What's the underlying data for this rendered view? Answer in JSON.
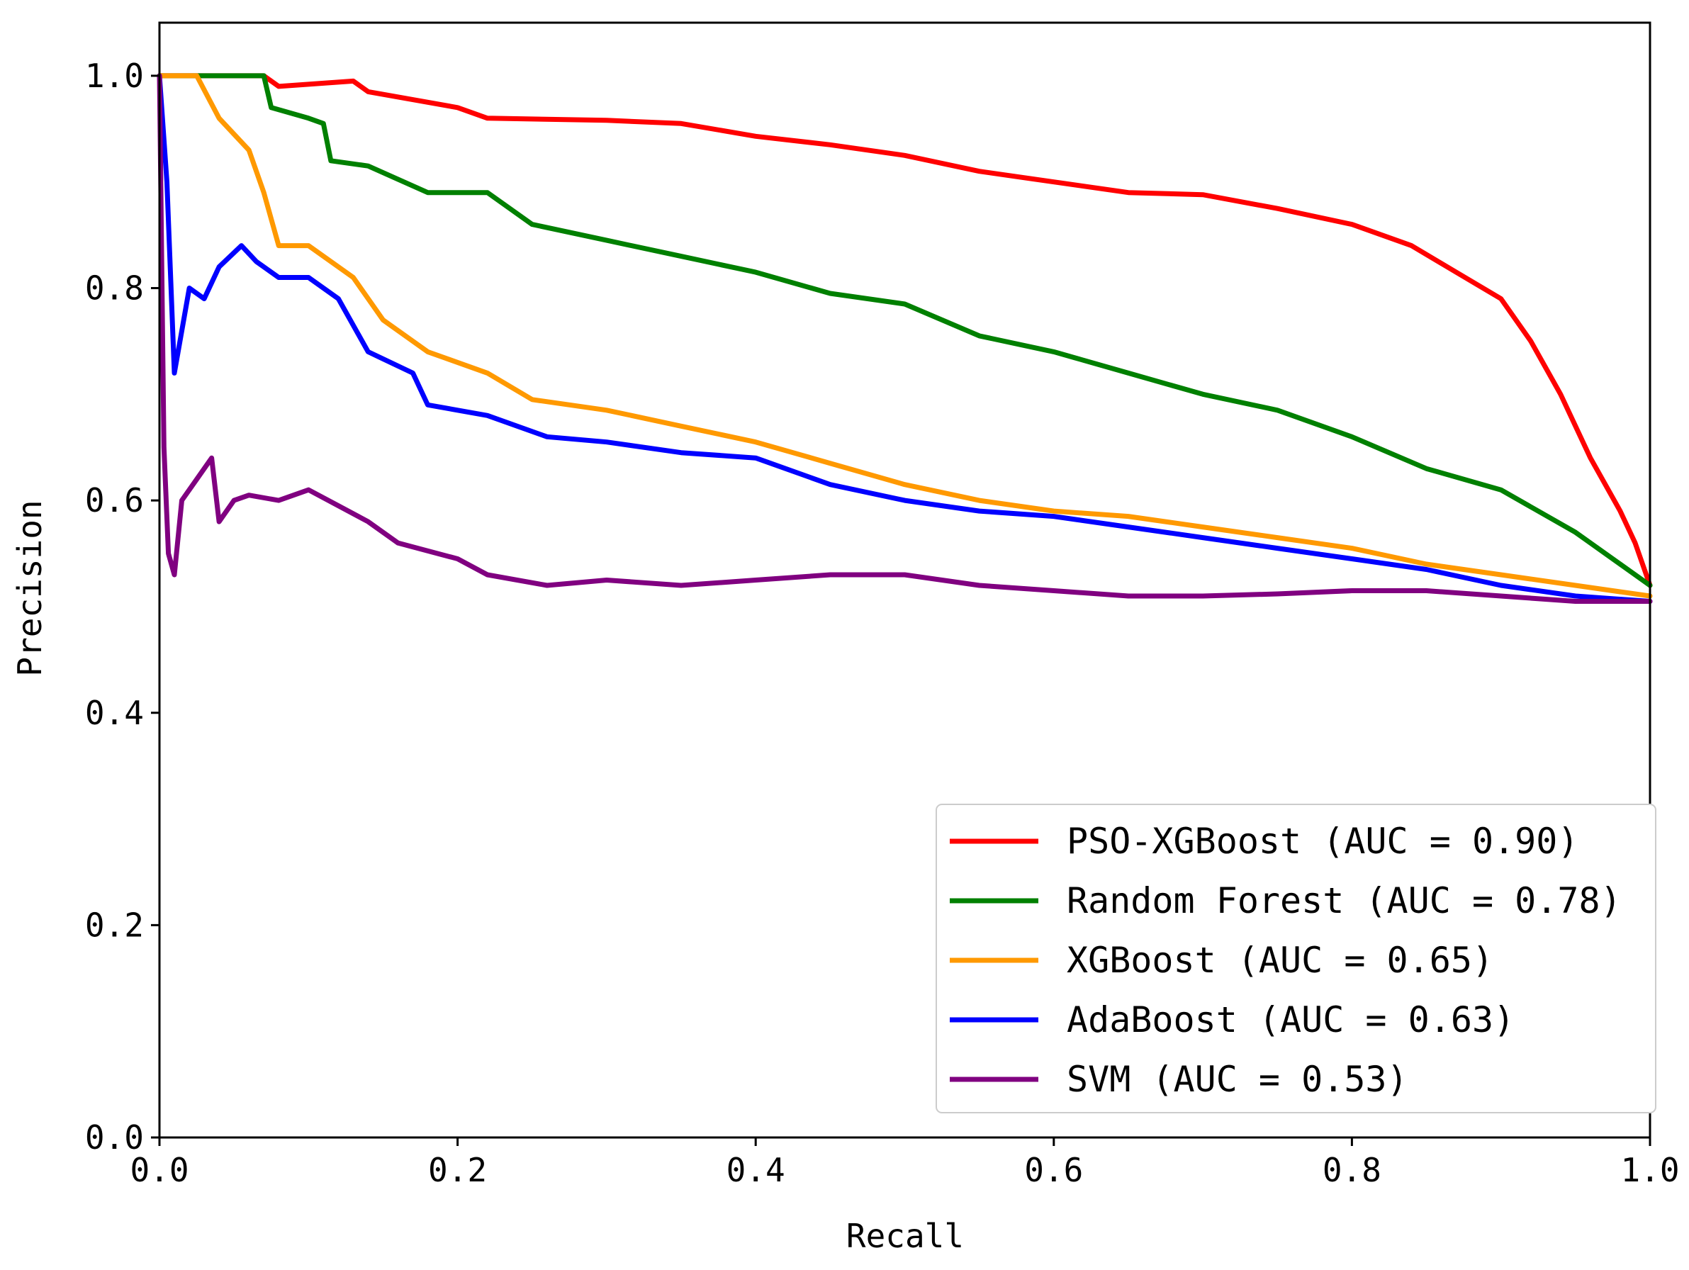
{
  "chart_data": {
    "type": "line",
    "title": "",
    "xlabel": "Recall",
    "ylabel": "Precision",
    "xlim": [
      0,
      1
    ],
    "ylim": [
      0,
      1.05
    ],
    "grid": false,
    "legend_position": "bottom-right",
    "x_ticks": [
      "0.0",
      "0.2",
      "0.4",
      "0.6",
      "0.8",
      "1.0"
    ],
    "y_ticks": [
      "0.0",
      "0.2",
      "0.4",
      "0.6",
      "0.8",
      "1.0"
    ],
    "series": [
      {
        "name": "PSO-XGBoost (AUC = 0.90)",
        "color": "#ff0000",
        "points": [
          [
            0.0,
            1.0
          ],
          [
            0.07,
            1.0
          ],
          [
            0.08,
            0.99
          ],
          [
            0.13,
            0.995
          ],
          [
            0.14,
            0.985
          ],
          [
            0.2,
            0.97
          ],
          [
            0.22,
            0.96
          ],
          [
            0.3,
            0.958
          ],
          [
            0.35,
            0.955
          ],
          [
            0.4,
            0.943
          ],
          [
            0.45,
            0.935
          ],
          [
            0.5,
            0.925
          ],
          [
            0.55,
            0.91
          ],
          [
            0.6,
            0.9
          ],
          [
            0.65,
            0.89
          ],
          [
            0.7,
            0.888
          ],
          [
            0.75,
            0.875
          ],
          [
            0.8,
            0.86
          ],
          [
            0.84,
            0.84
          ],
          [
            0.87,
            0.815
          ],
          [
            0.9,
            0.79
          ],
          [
            0.92,
            0.75
          ],
          [
            0.94,
            0.7
          ],
          [
            0.96,
            0.64
          ],
          [
            0.98,
            0.59
          ],
          [
            0.99,
            0.56
          ],
          [
            1.0,
            0.52
          ]
        ]
      },
      {
        "name": "Random Forest (AUC = 0.78)",
        "color": "#008000",
        "points": [
          [
            0.0,
            1.0
          ],
          [
            0.07,
            1.0
          ],
          [
            0.075,
            0.97
          ],
          [
            0.1,
            0.96
          ],
          [
            0.11,
            0.955
          ],
          [
            0.115,
            0.92
          ],
          [
            0.14,
            0.915
          ],
          [
            0.18,
            0.89
          ],
          [
            0.22,
            0.89
          ],
          [
            0.25,
            0.86
          ],
          [
            0.3,
            0.845
          ],
          [
            0.35,
            0.83
          ],
          [
            0.4,
            0.815
          ],
          [
            0.45,
            0.795
          ],
          [
            0.5,
            0.785
          ],
          [
            0.55,
            0.755
          ],
          [
            0.6,
            0.74
          ],
          [
            0.65,
            0.72
          ],
          [
            0.7,
            0.7
          ],
          [
            0.75,
            0.685
          ],
          [
            0.8,
            0.66
          ],
          [
            0.85,
            0.63
          ],
          [
            0.9,
            0.61
          ],
          [
            0.95,
            0.57
          ],
          [
            1.0,
            0.52
          ]
        ]
      },
      {
        "name": "XGBoost (AUC = 0.65)",
        "color": "#ff9900",
        "points": [
          [
            0.0,
            1.0
          ],
          [
            0.025,
            1.0
          ],
          [
            0.04,
            0.96
          ],
          [
            0.06,
            0.93
          ],
          [
            0.07,
            0.89
          ],
          [
            0.08,
            0.84
          ],
          [
            0.1,
            0.84
          ],
          [
            0.13,
            0.81
          ],
          [
            0.15,
            0.77
          ],
          [
            0.18,
            0.74
          ],
          [
            0.22,
            0.72
          ],
          [
            0.25,
            0.695
          ],
          [
            0.3,
            0.685
          ],
          [
            0.35,
            0.67
          ],
          [
            0.4,
            0.655
          ],
          [
            0.45,
            0.635
          ],
          [
            0.5,
            0.615
          ],
          [
            0.55,
            0.6
          ],
          [
            0.6,
            0.59
          ],
          [
            0.65,
            0.585
          ],
          [
            0.7,
            0.575
          ],
          [
            0.75,
            0.565
          ],
          [
            0.8,
            0.555
          ],
          [
            0.85,
            0.54
          ],
          [
            0.9,
            0.53
          ],
          [
            0.95,
            0.52
          ],
          [
            1.0,
            0.51
          ]
        ]
      },
      {
        "name": "AdaBoost (AUC = 0.63)",
        "color": "#0000ff",
        "points": [
          [
            0.0,
            1.0
          ],
          [
            0.005,
            0.9
          ],
          [
            0.01,
            0.72
          ],
          [
            0.02,
            0.8
          ],
          [
            0.03,
            0.79
          ],
          [
            0.04,
            0.82
          ],
          [
            0.055,
            0.84
          ],
          [
            0.065,
            0.825
          ],
          [
            0.08,
            0.81
          ],
          [
            0.1,
            0.81
          ],
          [
            0.12,
            0.79
          ],
          [
            0.14,
            0.74
          ],
          [
            0.17,
            0.72
          ],
          [
            0.18,
            0.69
          ],
          [
            0.22,
            0.68
          ],
          [
            0.26,
            0.66
          ],
          [
            0.3,
            0.655
          ],
          [
            0.35,
            0.645
          ],
          [
            0.4,
            0.64
          ],
          [
            0.45,
            0.615
          ],
          [
            0.5,
            0.6
          ],
          [
            0.55,
            0.59
          ],
          [
            0.6,
            0.585
          ],
          [
            0.65,
            0.575
          ],
          [
            0.7,
            0.565
          ],
          [
            0.75,
            0.555
          ],
          [
            0.8,
            0.545
          ],
          [
            0.85,
            0.535
          ],
          [
            0.9,
            0.52
          ],
          [
            0.95,
            0.51
          ],
          [
            1.0,
            0.505
          ]
        ]
      },
      {
        "name": "SVM (AUC = 0.53)",
        "color": "#800080",
        "points": [
          [
            0.0,
            1.0
          ],
          [
            0.003,
            0.65
          ],
          [
            0.006,
            0.55
          ],
          [
            0.01,
            0.53
          ],
          [
            0.015,
            0.6
          ],
          [
            0.025,
            0.62
          ],
          [
            0.035,
            0.64
          ],
          [
            0.04,
            0.58
          ],
          [
            0.05,
            0.6
          ],
          [
            0.06,
            0.605
          ],
          [
            0.08,
            0.6
          ],
          [
            0.1,
            0.61
          ],
          [
            0.12,
            0.595
          ],
          [
            0.14,
            0.58
          ],
          [
            0.16,
            0.56
          ],
          [
            0.2,
            0.545
          ],
          [
            0.22,
            0.53
          ],
          [
            0.26,
            0.52
          ],
          [
            0.3,
            0.525
          ],
          [
            0.35,
            0.52
          ],
          [
            0.4,
            0.525
          ],
          [
            0.45,
            0.53
          ],
          [
            0.5,
            0.53
          ],
          [
            0.55,
            0.52
          ],
          [
            0.6,
            0.515
          ],
          [
            0.65,
            0.51
          ],
          [
            0.7,
            0.51
          ],
          [
            0.75,
            0.512
          ],
          [
            0.8,
            0.515
          ],
          [
            0.85,
            0.515
          ],
          [
            0.9,
            0.51
          ],
          [
            0.95,
            0.505
          ],
          [
            1.0,
            0.505
          ]
        ]
      }
    ]
  }
}
